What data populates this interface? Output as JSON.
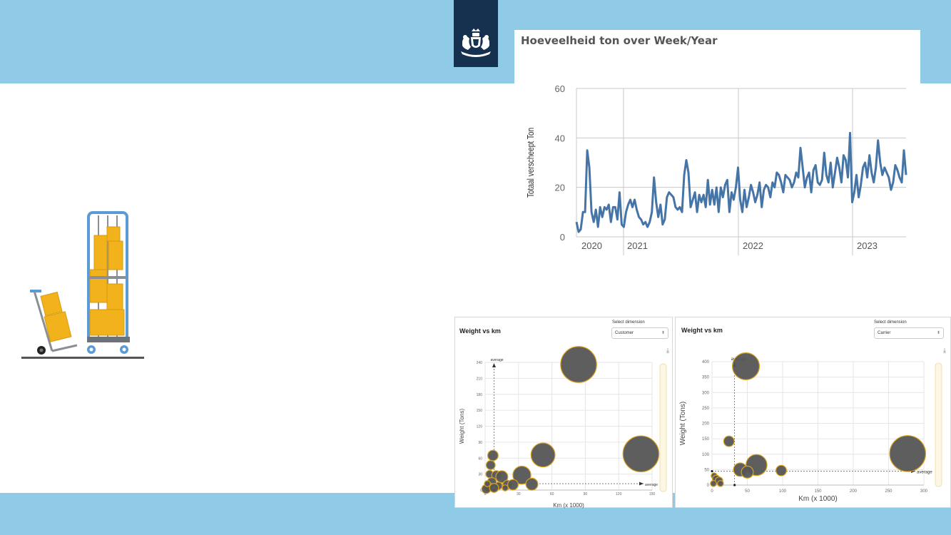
{
  "colors": {
    "band": "#8fcae6",
    "logo_bg": "#15314f",
    "line": "#4574a6",
    "bubble_fill": "#555555",
    "bubble_stroke": "#d9a21b"
  },
  "icons": {
    "emblem": "netherlands-coat-of-arms-icon",
    "illustration": "hand-trucks-with-boxes-illustration",
    "download": "download-icon"
  },
  "line_chart": {
    "title": "Hoeveelheid ton over Week/Year"
  },
  "bubble_left": {
    "title": "Weight vs km",
    "select_label": "Select dimension",
    "select_value": "Customer"
  },
  "bubble_right": {
    "title": "Weight vs km",
    "select_label": "Select dimension",
    "select_value": "Carrier"
  },
  "chart_data": [
    {
      "type": "line",
      "title": "Hoeveelheid ton over Week/Year",
      "ylabel": "Totaal verscheept Ton",
      "xlabel": "",
      "ylim": [
        0,
        60
      ],
      "yticks": [
        0,
        20,
        40,
        60
      ],
      "xticks": [
        "2020",
        "2021",
        "2022",
        "2023"
      ],
      "grid": true,
      "series": [
        {
          "values": [
            6,
            2,
            3,
            10,
            10,
            35,
            28,
            10,
            6,
            11,
            4,
            12,
            8,
            12,
            11,
            13,
            6,
            12,
            12,
            7,
            18,
            5,
            4,
            10,
            13,
            15,
            12,
            15,
            11,
            8,
            7,
            5,
            6,
            4,
            6,
            10,
            24,
            14,
            8,
            13,
            5,
            7,
            16,
            18,
            17,
            16,
            12,
            11,
            12,
            10,
            25,
            31,
            26,
            12,
            15,
            18,
            10,
            17,
            14,
            17,
            12,
            23,
            13,
            19,
            13,
            20,
            10,
            20,
            16,
            21,
            23,
            10,
            18,
            15,
            20,
            28,
            15,
            10,
            19,
            12,
            16,
            21,
            18,
            14,
            17,
            22,
            12,
            19,
            21,
            20,
            16,
            22,
            20,
            26,
            25,
            22,
            18,
            25,
            24,
            23,
            20,
            22,
            26,
            24,
            36,
            28,
            20,
            24,
            26,
            18,
            27,
            29,
            22,
            21,
            23,
            34,
            25,
            22,
            30,
            20,
            26,
            32,
            28,
            22,
            33,
            31,
            24,
            42,
            14,
            18,
            25,
            16,
            21,
            28,
            30,
            24,
            33,
            26,
            22,
            28,
            39,
            30,
            25,
            28,
            26,
            24,
            19,
            22,
            29,
            27,
            24,
            22,
            35,
            25
          ]
        }
      ]
    },
    {
      "type": "scatter",
      "title": "Weight vs km",
      "xlabel": "Km (x 1000)",
      "ylabel": "Weight (Tons)",
      "xlim": [
        0,
        150
      ],
      "ylim": [
        0,
        240
      ],
      "xticks": [
        0,
        30,
        60,
        90,
        120,
        150
      ],
      "yticks": [
        0,
        30,
        60,
        90,
        120,
        150,
        180,
        210,
        240
      ],
      "annotations": [
        "average",
        "average"
      ],
      "average_x": 8,
      "average_y": 12,
      "points": [
        {
          "x": 84,
          "y": 236,
          "r": 12
        },
        {
          "x": 140,
          "y": 68,
          "r": 12
        },
        {
          "x": 52,
          "y": 66,
          "r": 8
        },
        {
          "x": 33,
          "y": 28,
          "r": 6
        },
        {
          "x": 42,
          "y": 11,
          "r": 4
        },
        {
          "x": 7,
          "y": 65,
          "r": 3.5
        },
        {
          "x": 5,
          "y": 47,
          "r": 3
        },
        {
          "x": 4,
          "y": 30,
          "r": 2.5
        },
        {
          "x": 10,
          "y": 28,
          "r": 3
        },
        {
          "x": 15,
          "y": 25,
          "r": 4
        },
        {
          "x": 20,
          "y": 10,
          "r": 3
        },
        {
          "x": 25,
          "y": 10,
          "r": 3.5
        },
        {
          "x": 12,
          "y": 8,
          "r": 2.5
        },
        {
          "x": 6,
          "y": 15,
          "r": 3
        },
        {
          "x": 3,
          "y": 6,
          "r": 3
        },
        {
          "x": 1,
          "y": 2,
          "r": 3
        },
        {
          "x": 8,
          "y": 4,
          "r": 3
        },
        {
          "x": 2,
          "y": 12,
          "r": 2
        },
        {
          "x": 18,
          "y": 4,
          "r": 2
        }
      ]
    },
    {
      "type": "scatter",
      "title": "Weight vs km",
      "xlabel": "Km (x 1000)",
      "ylabel": "Weight (Tons)",
      "xlim": [
        0,
        300
      ],
      "ylim": [
        0,
        400
      ],
      "xticks": [
        0,
        50,
        100,
        150,
        200,
        250,
        300
      ],
      "yticks": [
        0,
        50,
        100,
        150,
        200,
        250,
        300,
        350,
        400
      ],
      "annotations": [
        "average",
        "average"
      ],
      "average_x": 32,
      "average_y": 45,
      "points": [
        {
          "x": 48,
          "y": 385,
          "r": 9
        },
        {
          "x": 277,
          "y": 102,
          "r": 12
        },
        {
          "x": 63,
          "y": 65,
          "r": 7
        },
        {
          "x": 24,
          "y": 142,
          "r": 3.5
        },
        {
          "x": 40,
          "y": 50,
          "r": 4.5
        },
        {
          "x": 50,
          "y": 42,
          "r": 4
        },
        {
          "x": 98,
          "y": 47,
          "r": 3.5
        },
        {
          "x": 3,
          "y": 30,
          "r": 2
        },
        {
          "x": 6,
          "y": 20,
          "r": 2.5
        },
        {
          "x": 10,
          "y": 14,
          "r": 2.5
        },
        {
          "x": 2,
          "y": 5,
          "r": 2
        },
        {
          "x": 12,
          "y": 5,
          "r": 2
        }
      ]
    }
  ]
}
